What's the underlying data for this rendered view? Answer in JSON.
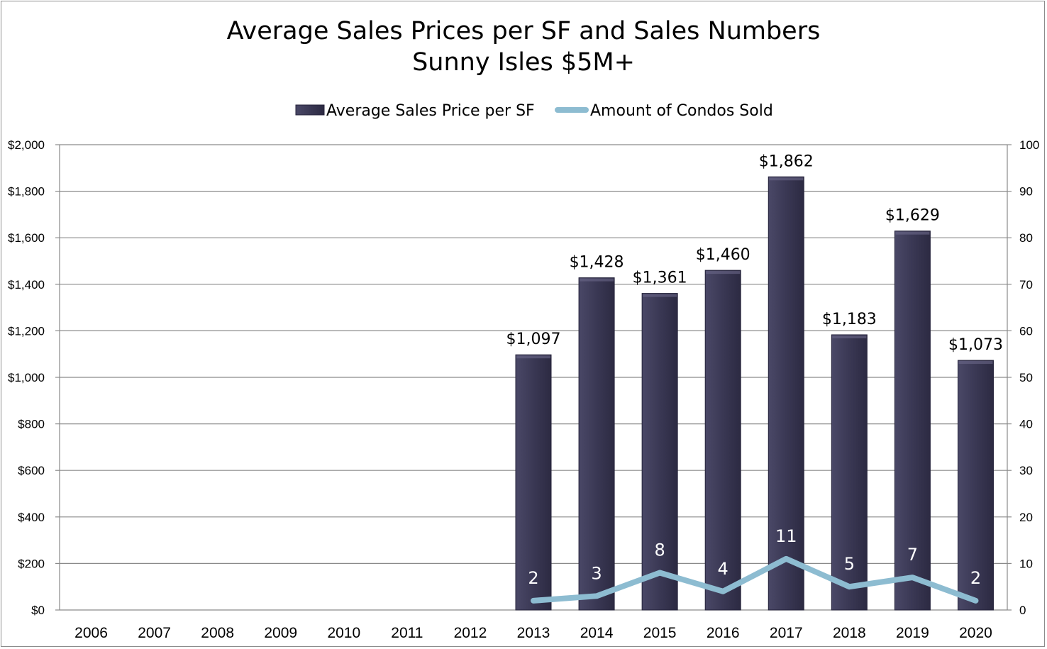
{
  "chart_data": {
    "type": "bar",
    "title": "Average Sales Prices per SF and Sales Numbers",
    "subtitle": "Sunny Isles $5M+",
    "categories": [
      "2006",
      "2007",
      "2008",
      "2009",
      "2010",
      "2011",
      "2012",
      "2013",
      "2014",
      "2015",
      "2016",
      "2017",
      "2018",
      "2019",
      "2020"
    ],
    "series": [
      {
        "name": "Average Sales Price per SF",
        "type": "bar",
        "axis": "left",
        "values": [
          null,
          null,
          null,
          null,
          null,
          null,
          null,
          1097,
          1428,
          1361,
          1460,
          1862,
          1183,
          1629,
          1073
        ],
        "labels": [
          null,
          null,
          null,
          null,
          null,
          null,
          null,
          "$1,097",
          "$1,428",
          "$1,361",
          "$1,460",
          "$1,862",
          "$1,183",
          "$1,629",
          "$1,073"
        ],
        "color": "#3b3956"
      },
      {
        "name": "Amount of Condos Sold",
        "type": "line",
        "axis": "right",
        "values": [
          null,
          null,
          null,
          null,
          null,
          null,
          null,
          2,
          3,
          8,
          4,
          11,
          5,
          7,
          2
        ],
        "labels": [
          null,
          null,
          null,
          null,
          null,
          null,
          null,
          "2",
          "3",
          "8",
          "4",
          "11",
          "5",
          "7",
          "2"
        ],
        "color": "#8dbcd1"
      }
    ],
    "y_left": {
      "range": [
        0,
        2000
      ],
      "ticks": [
        0,
        200,
        400,
        600,
        800,
        1000,
        1200,
        1400,
        1600,
        1800,
        2000
      ],
      "tick_labels": [
        "$0",
        "$200",
        "$400",
        "$600",
        "$800",
        "$1,000",
        "$1,200",
        "$1,400",
        "$1,600",
        "$1,800",
        "$2,000"
      ]
    },
    "y_right": {
      "range": [
        0,
        100
      ],
      "ticks": [
        0,
        10,
        20,
        30,
        40,
        50,
        60,
        70,
        80,
        90,
        100
      ],
      "tick_labels": [
        "0",
        "10",
        "20",
        "30",
        "40",
        "50",
        "60",
        "70",
        "80",
        "90",
        "100"
      ]
    },
    "grid": true,
    "legend": "top",
    "xlabel": "",
    "ylabel": ""
  }
}
